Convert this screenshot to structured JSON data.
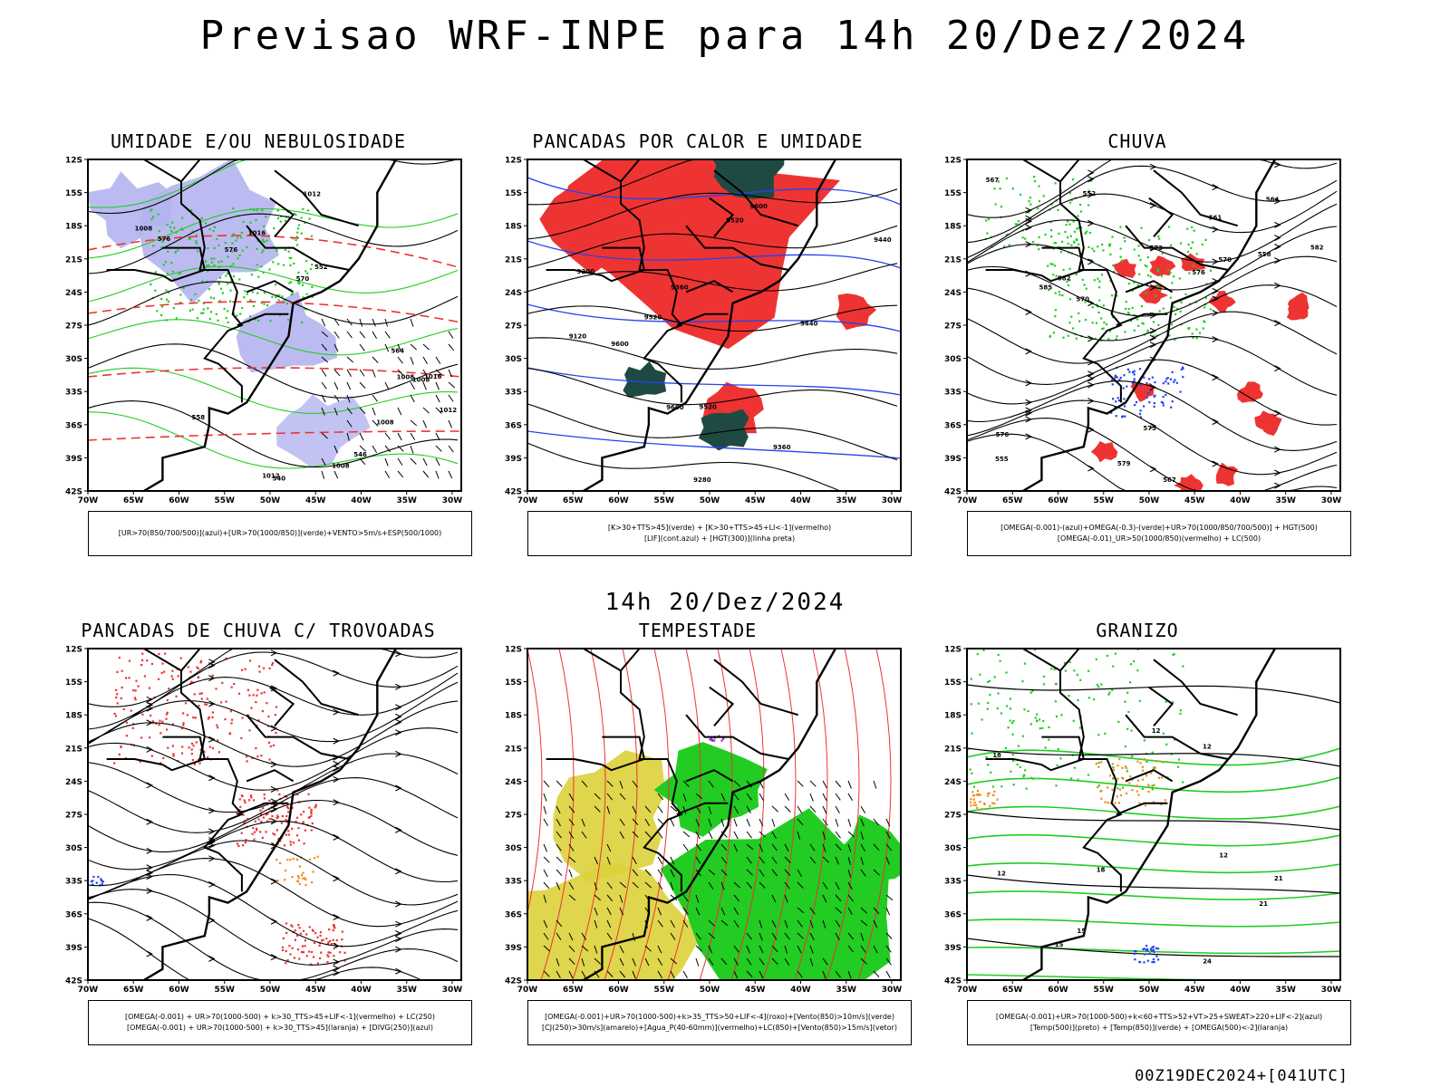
{
  "title": "Previsao WRF-INPE  para 14h 20/Dez/2024",
  "subtitle": "14h 20/Dez/2024",
  "footer": "00Z19DEC2024+[041UTC]",
  "axes": {
    "lat_labels": [
      "12S",
      "15S",
      "18S",
      "21S",
      "24S",
      "27S",
      "30S",
      "33S",
      "36S",
      "39S",
      "42S"
    ],
    "lon_labels": [
      "70W",
      "65W",
      "60W",
      "55W",
      "50W",
      "45W",
      "40W",
      "35W",
      "30W"
    ]
  },
  "colors": {
    "blue_shade": "#b4b4f0",
    "green": "#22cc22",
    "red": "#ee3333",
    "blue": "#2244ee",
    "dark_teal": "#1f4a44",
    "yellow": "#dcd23a",
    "orange": "#f08a20",
    "purple": "#9922cc"
  },
  "panels": [
    {
      "title": "UMIDADE E/OU NEBULOSIDADE",
      "legend": [
        "[UR>70(850/700/500)](azul)+[UR>70(1000/850)](verde)+VENTO>5m/s+ESP(500/1000)"
      ],
      "contour_labels": [
        "1008",
        "1008",
        "1008",
        "1008",
        "1012",
        "1012",
        "1016",
        "1016",
        "1012",
        "1008",
        "576",
        "576",
        "570",
        "564",
        "558",
        "552",
        "546",
        "540"
      ]
    },
    {
      "title": "PANCADAS POR CALOR E UMIDADE",
      "legend": [
        "[K>30+TTS>45](verde) + [K>30+TTS>45+LI<-1](vermelho)",
        "[LIF](cont.azul) + [HGT(300)](linha preta)"
      ],
      "contour_labels": [
        "9600",
        "9600",
        "9600",
        "9520",
        "9520",
        "9520",
        "9440",
        "9440",
        "9360",
        "9360",
        "9280",
        "9200",
        "9120"
      ]
    },
    {
      "title": "CHUVA",
      "legend": [
        "[OMEGA(-0.001)-(azul)+OMEGA(-0.3)-(verde)+UR>70(1000/850/700/500)] + HGT(500)",
        "[OMEGA(-0.01)_UR>50(1000/850)(vermelho) + LC(500)"
      ],
      "contour_labels": [
        "585",
        "582",
        "582",
        "579",
        "576",
        "573",
        "570",
        "567",
        "564",
        "561",
        "558",
        "555",
        "552",
        "576",
        "573",
        "570",
        "567"
      ]
    },
    {
      "title": "PANCADAS DE CHUVA C/ TROVOADAS",
      "legend": [
        "[OMEGA(-0.001) + UR>70(1000-500) + k>30_TTS>45+LIF<-1](vermelho) + LC(250)",
        "[OMEGA(-0.001) + UR>70(1000-500) + k>30_TTS>45](laranja) + [DIVG(250)](azul)"
      ],
      "contour_labels": []
    },
    {
      "title": "TEMPESTADE",
      "legend": [
        "[OMEGA(-0.001)+UR>70(1000-500)+k>35_TTS>50+LIF<-4](roxo)+[Vento(850)>10m/s](verde)",
        "[CJ(250)>30m/s](amarelo)+[Agua_P(40-60mm)](vermelho)+LC(850)+[Vento(850)>15m/s](vetor)"
      ],
      "contour_labels": []
    },
    {
      "title": "GRANIZO",
      "legend": [
        "[OMEGA(-0.001)+UR>70(1000-500)+k<60+TTS>52+VT>25+SWEAT>220+LIF<-2](azul)",
        "[Temp(500)](preto) + [Temp(850)](verde) + [OMEGA(500)<-2](laranja)"
      ],
      "contour_labels": [
        "12",
        "12",
        "12",
        "12",
        "15",
        "15",
        "18",
        "18",
        "21",
        "21",
        "24"
      ]
    }
  ]
}
